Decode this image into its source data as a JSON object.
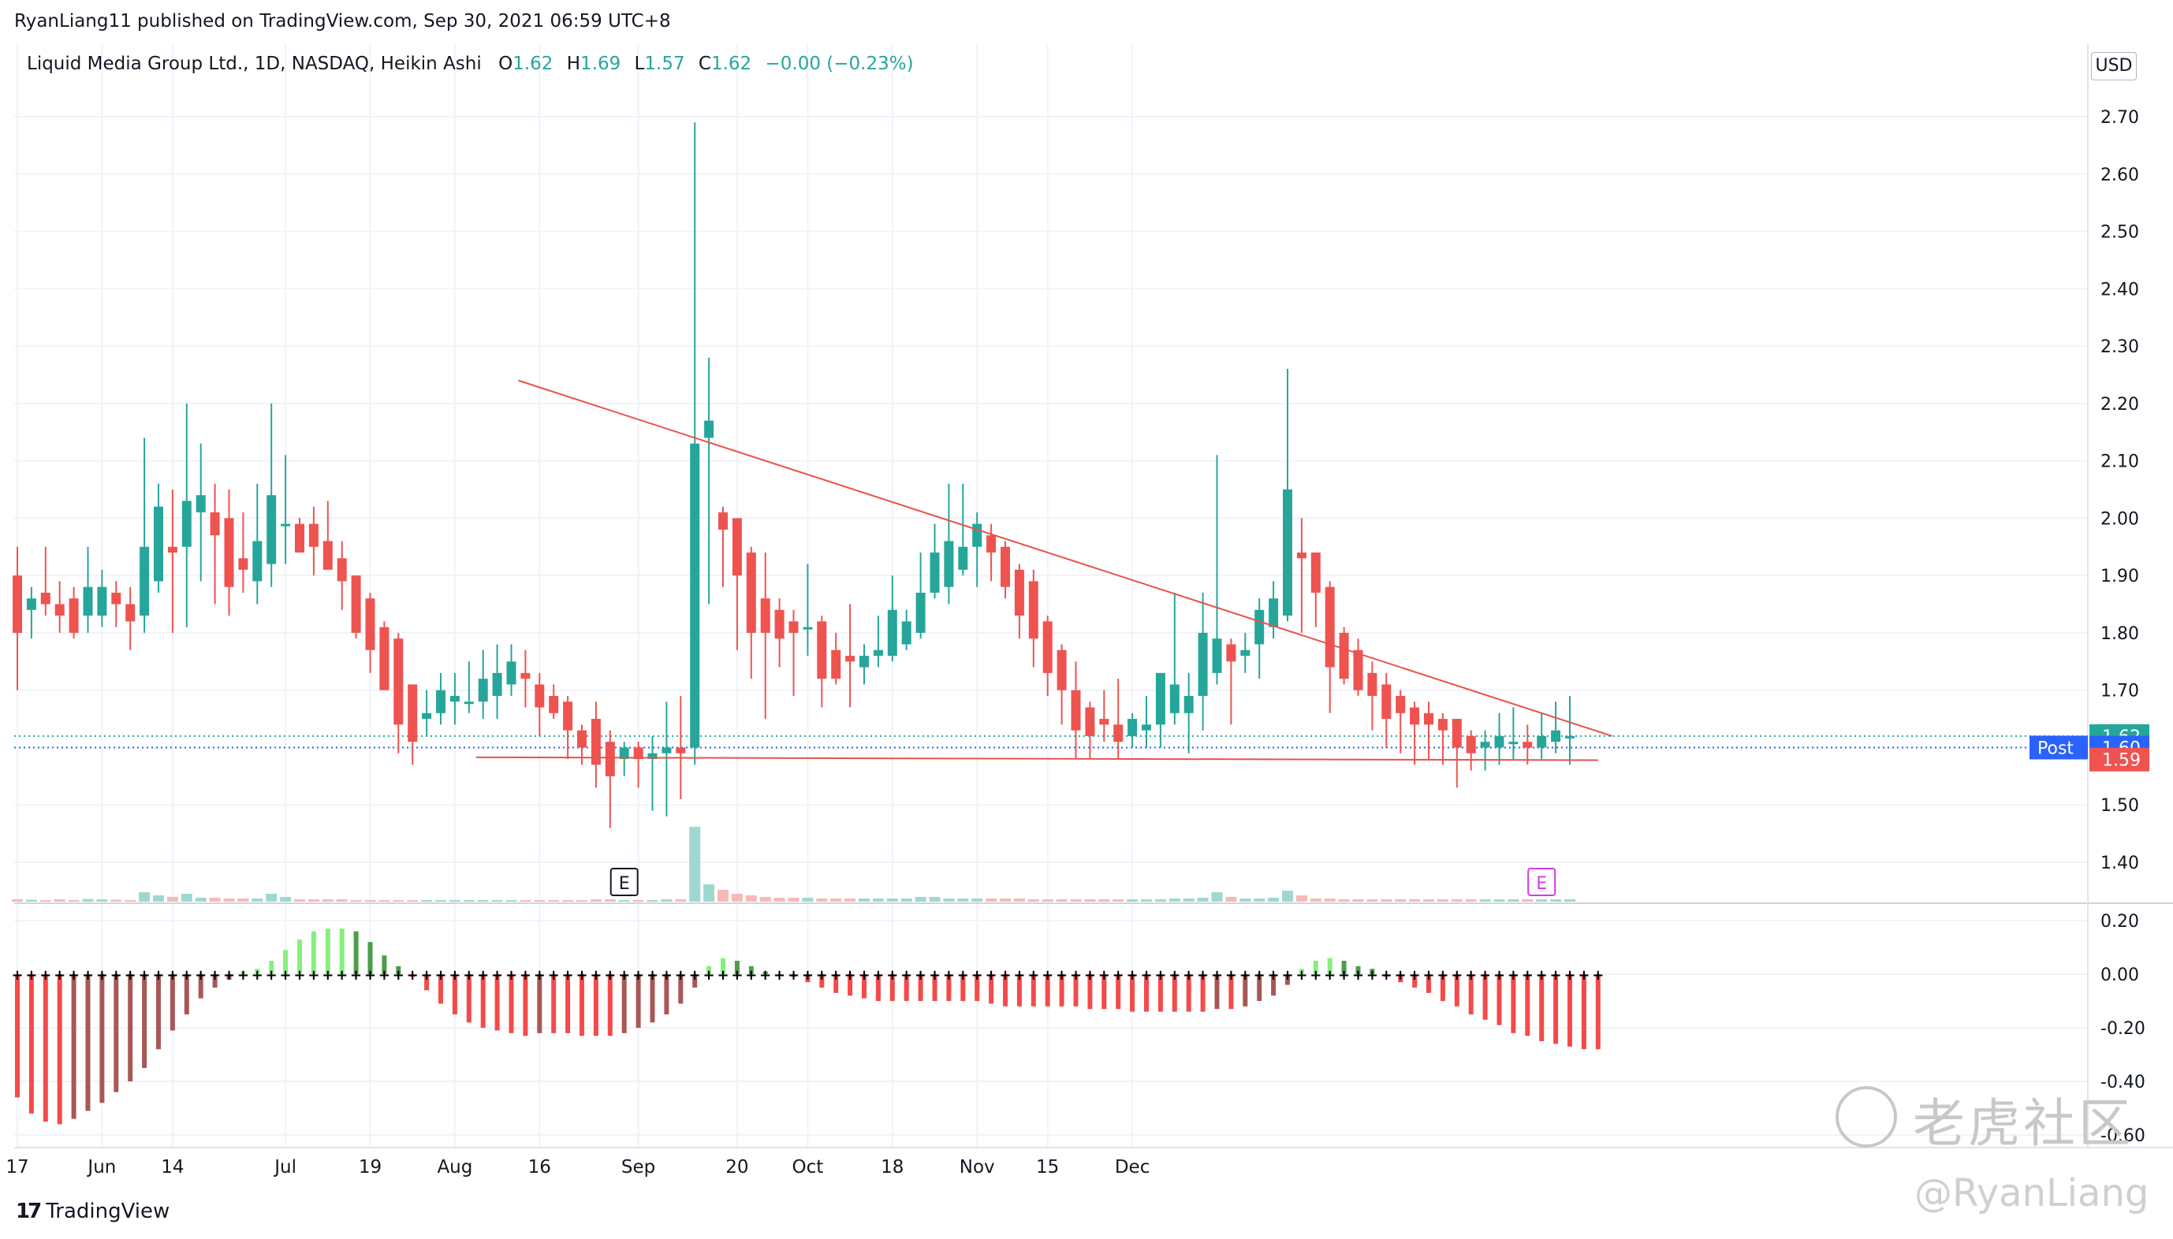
{
  "header": {
    "published": "RyanLiang11 published on TradingView.com, Sep 30, 2021 06:59 UTC+8",
    "symbol": "Liquid Media Group Ltd., 1D, NASDAQ, Heikin Ashi",
    "o_label": "O",
    "o_value": "1.62",
    "h_label": "H",
    "h_value": "1.69",
    "l_label": "L",
    "l_value": "1.57",
    "c_label": "C",
    "c_value": "1.62",
    "change": "−0.00 (−0.23%)"
  },
  "currency": "USD",
  "price_tags": {
    "last": "1.62",
    "post_label": "Post",
    "post": "1.60",
    "low": "1.59"
  },
  "footer": {
    "brand": "TradingView"
  },
  "watermark": {
    "site": "老虎社区",
    "user": "@RyanLiang"
  },
  "colors": {
    "up": "#26a69a",
    "down": "#ef5350",
    "trend": "#e8524a",
    "volume_up": "#9fd8cf",
    "volume_down": "#f5b9b7",
    "osc_light_green": "#86f07c",
    "osc_dark_green": "#4c9d48",
    "osc_light_red": "#f44a4a",
    "osc_dark_red": "#a85757",
    "post_tag": "#2962ff",
    "earnings": "#d33ae6"
  },
  "chart_data": [
    {
      "type": "candlestick",
      "style": "Heikin Ashi",
      "ylim": [
        1.35,
        2.75
      ],
      "y_ticks": [
        "2.70",
        "2.60",
        "2.50",
        "2.40",
        "2.30",
        "2.20",
        "2.10",
        "2.00",
        "1.90",
        "1.80",
        "1.70",
        "1.60",
        "1.50",
        "1.40"
      ],
      "x_ticks": [
        "17",
        "Jun",
        "14",
        "Jul",
        "19",
        "Aug",
        "16",
        "Sep",
        "20",
        "Oct",
        "18",
        "Nov",
        "15",
        "Dec"
      ],
      "candles": [
        {
          "o": 1.9,
          "h": 1.95,
          "l": 1.7,
          "c": 1.8
        },
        {
          "o": 1.84,
          "h": 1.88,
          "l": 1.79,
          "c": 1.86
        },
        {
          "o": 1.87,
          "h": 1.95,
          "l": 1.83,
          "c": 1.85
        },
        {
          "o": 1.85,
          "h": 1.89,
          "l": 1.8,
          "c": 1.83
        },
        {
          "o": 1.86,
          "h": 1.88,
          "l": 1.79,
          "c": 1.8
        },
        {
          "o": 1.83,
          "h": 1.95,
          "l": 1.8,
          "c": 1.88
        },
        {
          "o": 1.83,
          "h": 1.91,
          "l": 1.81,
          "c": 1.88
        },
        {
          "o": 1.87,
          "h": 1.89,
          "l": 1.81,
          "c": 1.85
        },
        {
          "o": 1.85,
          "h": 1.88,
          "l": 1.77,
          "c": 1.82
        },
        {
          "o": 1.83,
          "h": 2.14,
          "l": 1.8,
          "c": 1.95
        },
        {
          "o": 1.89,
          "h": 2.06,
          "l": 1.87,
          "c": 2.02
        },
        {
          "o": 1.95,
          "h": 2.05,
          "l": 1.8,
          "c": 1.94
        },
        {
          "o": 1.95,
          "h": 2.2,
          "l": 1.81,
          "c": 2.03
        },
        {
          "o": 2.01,
          "h": 2.13,
          "l": 1.89,
          "c": 2.04
        },
        {
          "o": 2.01,
          "h": 2.06,
          "l": 1.85,
          "c": 1.97
        },
        {
          "o": 2.0,
          "h": 2.05,
          "l": 1.83,
          "c": 1.88
        },
        {
          "o": 1.93,
          "h": 2.01,
          "l": 1.87,
          "c": 1.91
        },
        {
          "o": 1.89,
          "h": 2.06,
          "l": 1.85,
          "c": 1.96
        },
        {
          "o": 1.92,
          "h": 2.2,
          "l": 1.88,
          "c": 2.04
        },
        {
          "o": 1.99,
          "h": 2.11,
          "l": 1.92,
          "c": 1.99
        },
        {
          "o": 1.99,
          "h": 2.0,
          "l": 1.94,
          "c": 1.94
        },
        {
          "o": 1.99,
          "h": 2.02,
          "l": 1.9,
          "c": 1.95
        },
        {
          "o": 1.96,
          "h": 2.03,
          "l": 1.92,
          "c": 1.91
        },
        {
          "o": 1.93,
          "h": 1.96,
          "l": 1.84,
          "c": 1.89
        },
        {
          "o": 1.9,
          "h": 1.9,
          "l": 1.79,
          "c": 1.8
        },
        {
          "o": 1.86,
          "h": 1.87,
          "l": 1.73,
          "c": 1.77
        },
        {
          "o": 1.81,
          "h": 1.82,
          "l": 1.71,
          "c": 1.7
        },
        {
          "o": 1.79,
          "h": 1.8,
          "l": 1.59,
          "c": 1.64
        },
        {
          "o": 1.71,
          "h": 1.71,
          "l": 1.57,
          "c": 1.61
        },
        {
          "o": 1.65,
          "h": 1.7,
          "l": 1.62,
          "c": 1.66
        },
        {
          "o": 1.66,
          "h": 1.73,
          "l": 1.64,
          "c": 1.7
        },
        {
          "o": 1.68,
          "h": 1.73,
          "l": 1.64,
          "c": 1.69
        },
        {
          "o": 1.68,
          "h": 1.75,
          "l": 1.66,
          "c": 1.68
        },
        {
          "o": 1.68,
          "h": 1.77,
          "l": 1.65,
          "c": 1.72
        },
        {
          "o": 1.69,
          "h": 1.78,
          "l": 1.65,
          "c": 1.73
        },
        {
          "o": 1.71,
          "h": 1.78,
          "l": 1.69,
          "c": 1.75
        },
        {
          "o": 1.73,
          "h": 1.77,
          "l": 1.67,
          "c": 1.72
        },
        {
          "o": 1.71,
          "h": 1.73,
          "l": 1.62,
          "c": 1.67
        },
        {
          "o": 1.69,
          "h": 1.71,
          "l": 1.65,
          "c": 1.66
        },
        {
          "o": 1.68,
          "h": 1.69,
          "l": 1.58,
          "c": 1.63
        },
        {
          "o": 1.63,
          "h": 1.64,
          "l": 1.57,
          "c": 1.6
        },
        {
          "o": 1.65,
          "h": 1.68,
          "l": 1.53,
          "c": 1.57
        },
        {
          "o": 1.61,
          "h": 1.63,
          "l": 1.46,
          "c": 1.55
        },
        {
          "o": 1.58,
          "h": 1.61,
          "l": 1.55,
          "c": 1.6
        },
        {
          "o": 1.6,
          "h": 1.61,
          "l": 1.53,
          "c": 1.58
        },
        {
          "o": 1.58,
          "h": 1.62,
          "l": 1.49,
          "c": 1.59
        },
        {
          "o": 1.59,
          "h": 1.68,
          "l": 1.48,
          "c": 1.6
        },
        {
          "o": 1.6,
          "h": 1.69,
          "l": 1.51,
          "c": 1.59
        },
        {
          "o": 1.6,
          "h": 2.69,
          "l": 1.57,
          "c": 2.13
        },
        {
          "o": 2.14,
          "h": 2.28,
          "l": 1.85,
          "c": 2.17
        },
        {
          "o": 2.01,
          "h": 2.02,
          "l": 1.88,
          "c": 1.98
        },
        {
          "o": 2.0,
          "h": 2.0,
          "l": 1.77,
          "c": 1.9
        },
        {
          "o": 1.94,
          "h": 1.95,
          "l": 1.72,
          "c": 1.8
        },
        {
          "o": 1.86,
          "h": 1.94,
          "l": 1.65,
          "c": 1.8
        },
        {
          "o": 1.84,
          "h": 1.86,
          "l": 1.74,
          "c": 1.79
        },
        {
          "o": 1.82,
          "h": 1.84,
          "l": 1.69,
          "c": 1.8
        },
        {
          "o": 1.81,
          "h": 1.92,
          "l": 1.76,
          "c": 1.81
        },
        {
          "o": 1.82,
          "h": 1.83,
          "l": 1.67,
          "c": 1.72
        },
        {
          "o": 1.77,
          "h": 1.8,
          "l": 1.71,
          "c": 1.72
        },
        {
          "o": 1.76,
          "h": 1.85,
          "l": 1.67,
          "c": 1.75
        },
        {
          "o": 1.74,
          "h": 1.78,
          "l": 1.71,
          "c": 1.76
        },
        {
          "o": 1.76,
          "h": 1.83,
          "l": 1.74,
          "c": 1.77
        },
        {
          "o": 1.76,
          "h": 1.9,
          "l": 1.75,
          "c": 1.84
        },
        {
          "o": 1.78,
          "h": 1.84,
          "l": 1.77,
          "c": 1.82
        },
        {
          "o": 1.8,
          "h": 1.94,
          "l": 1.79,
          "c": 1.87
        },
        {
          "o": 1.87,
          "h": 1.99,
          "l": 1.86,
          "c": 1.94
        },
        {
          "o": 1.88,
          "h": 2.06,
          "l": 1.85,
          "c": 1.96
        },
        {
          "o": 1.91,
          "h": 2.06,
          "l": 1.9,
          "c": 1.95
        },
        {
          "o": 1.95,
          "h": 2.01,
          "l": 1.88,
          "c": 1.99
        },
        {
          "o": 1.97,
          "h": 1.99,
          "l": 1.89,
          "c": 1.94
        },
        {
          "o": 1.95,
          "h": 1.96,
          "l": 1.86,
          "c": 1.88
        },
        {
          "o": 1.91,
          "h": 1.92,
          "l": 1.79,
          "c": 1.83
        },
        {
          "o": 1.89,
          "h": 1.91,
          "l": 1.74,
          "c": 1.79
        },
        {
          "o": 1.82,
          "h": 1.83,
          "l": 1.69,
          "c": 1.73
        },
        {
          "o": 1.77,
          "h": 1.78,
          "l": 1.64,
          "c": 1.7
        },
        {
          "o": 1.7,
          "h": 1.75,
          "l": 1.58,
          "c": 1.63
        },
        {
          "o": 1.67,
          "h": 1.68,
          "l": 1.58,
          "c": 1.62
        },
        {
          "o": 1.65,
          "h": 1.7,
          "l": 1.61,
          "c": 1.64
        },
        {
          "o": 1.64,
          "h": 1.72,
          "l": 1.58,
          "c": 1.61
        },
        {
          "o": 1.62,
          "h": 1.66,
          "l": 1.6,
          "c": 1.65
        },
        {
          "o": 1.63,
          "h": 1.69,
          "l": 1.6,
          "c": 1.64
        },
        {
          "o": 1.64,
          "h": 1.73,
          "l": 1.6,
          "c": 1.73
        },
        {
          "o": 1.66,
          "h": 1.87,
          "l": 1.64,
          "c": 1.71
        },
        {
          "o": 1.66,
          "h": 1.73,
          "l": 1.59,
          "c": 1.69
        },
        {
          "o": 1.69,
          "h": 1.87,
          "l": 1.63,
          "c": 1.8
        },
        {
          "o": 1.73,
          "h": 2.11,
          "l": 1.71,
          "c": 1.79
        },
        {
          "o": 1.78,
          "h": 1.79,
          "l": 1.64,
          "c": 1.75
        },
        {
          "o": 1.76,
          "h": 1.8,
          "l": 1.73,
          "c": 1.77
        },
        {
          "o": 1.78,
          "h": 1.86,
          "l": 1.72,
          "c": 1.84
        },
        {
          "o": 1.81,
          "h": 1.89,
          "l": 1.79,
          "c": 1.86
        },
        {
          "o": 1.83,
          "h": 2.26,
          "l": 1.82,
          "c": 2.05
        },
        {
          "o": 1.94,
          "h": 2.0,
          "l": 1.8,
          "c": 1.93
        },
        {
          "o": 1.94,
          "h": 1.94,
          "l": 1.81,
          "c": 1.87
        },
        {
          "o": 1.88,
          "h": 1.89,
          "l": 1.66,
          "c": 1.74
        },
        {
          "o": 1.8,
          "h": 1.81,
          "l": 1.71,
          "c": 1.72
        },
        {
          "o": 1.77,
          "h": 1.79,
          "l": 1.69,
          "c": 1.7
        },
        {
          "o": 1.73,
          "h": 1.75,
          "l": 1.63,
          "c": 1.69
        },
        {
          "o": 1.71,
          "h": 1.73,
          "l": 1.6,
          "c": 1.65
        },
        {
          "o": 1.69,
          "h": 1.7,
          "l": 1.59,
          "c": 1.66
        },
        {
          "o": 1.67,
          "h": 1.68,
          "l": 1.57,
          "c": 1.64
        },
        {
          "o": 1.66,
          "h": 1.68,
          "l": 1.58,
          "c": 1.64
        },
        {
          "o": 1.65,
          "h": 1.66,
          "l": 1.57,
          "c": 1.63
        },
        {
          "o": 1.65,
          "h": 1.65,
          "l": 1.53,
          "c": 1.6
        },
        {
          "o": 1.62,
          "h": 1.63,
          "l": 1.56,
          "c": 1.59
        },
        {
          "o": 1.6,
          "h": 1.63,
          "l": 1.56,
          "c": 1.61
        },
        {
          "o": 1.6,
          "h": 1.66,
          "l": 1.57,
          "c": 1.62
        },
        {
          "o": 1.61,
          "h": 1.67,
          "l": 1.58,
          "c": 1.61
        },
        {
          "o": 1.61,
          "h": 1.64,
          "l": 1.57,
          "c": 1.6
        },
        {
          "o": 1.6,
          "h": 1.66,
          "l": 1.58,
          "c": 1.62
        },
        {
          "o": 1.61,
          "h": 1.68,
          "l": 1.59,
          "c": 1.63
        },
        {
          "o": 1.62,
          "h": 1.69,
          "l": 1.57,
          "c": 1.62
        }
      ],
      "volume": [
        0.3,
        0.25,
        0.2,
        0.3,
        0.2,
        0.35,
        0.3,
        0.25,
        0.2,
        1.2,
        0.8,
        0.6,
        1.0,
        0.5,
        0.5,
        0.4,
        0.4,
        0.4,
        1.0,
        0.6,
        0.3,
        0.3,
        0.3,
        0.3,
        0.2,
        0.2,
        0.2,
        0.2,
        0.2,
        0.2,
        0.2,
        0.2,
        0.2,
        0.2,
        0.2,
        0.2,
        0.2,
        0.2,
        0.2,
        0.2,
        0.2,
        0.3,
        0.3,
        0.2,
        0.2,
        0.2,
        0.3,
        0.3,
        9.5,
        2.2,
        1.5,
        1.0,
        0.8,
        0.6,
        0.5,
        0.5,
        0.5,
        0.4,
        0.4,
        0.4,
        0.4,
        0.4,
        0.4,
        0.4,
        0.6,
        0.6,
        0.4,
        0.4,
        0.4,
        0.4,
        0.4,
        0.4,
        0.3,
        0.3,
        0.3,
        0.3,
        0.3,
        0.3,
        0.3,
        0.3,
        0.3,
        0.3,
        0.4,
        0.4,
        0.5,
        1.2,
        0.6,
        0.4,
        0.4,
        0.5,
        1.4,
        0.8,
        0.4,
        0.4,
        0.3,
        0.3,
        0.3,
        0.3,
        0.3,
        0.3,
        0.3,
        0.3,
        0.3,
        0.3,
        0.3,
        0.3,
        0.3,
        0.3,
        0.3,
        0.3,
        0.3
      ],
      "trendline_upper": {
        "start": {
          "x_index": 35.5,
          "y": 2.24
        },
        "end": {
          "x_index": 113.0,
          "y": 1.62
        }
      },
      "trendline_lower": {
        "start": {
          "x_index": 32.5,
          "y": 1.583
        },
        "end": {
          "x_index": 112.0,
          "y": 1.578
        }
      },
      "earnings_markers": [
        {
          "x_index": 43,
          "label": "E",
          "style": "past"
        },
        {
          "x_index": 108,
          "label": "E",
          "style": "future"
        }
      ]
    },
    {
      "type": "bar",
      "name_label": "",
      "ylim": [
        -0.62,
        0.24
      ],
      "y_ticks": [
        "0.20",
        "0.00",
        "-0.20",
        "-0.40",
        "-0.60"
      ],
      "values": [
        -0.46,
        -0.52,
        -0.55,
        -0.56,
        -0.54,
        -0.51,
        -0.48,
        -0.44,
        -0.4,
        -0.35,
        -0.28,
        -0.21,
        -0.15,
        -0.09,
        -0.05,
        -0.02,
        0.01,
        0.02,
        0.05,
        0.09,
        0.13,
        0.16,
        0.17,
        0.17,
        0.16,
        0.12,
        0.07,
        0.03,
        -0.01,
        -0.06,
        -0.11,
        -0.15,
        -0.18,
        -0.2,
        -0.21,
        -0.22,
        -0.23,
        -0.22,
        -0.22,
        -0.22,
        -0.23,
        -0.23,
        -0.23,
        -0.22,
        -0.2,
        -0.18,
        -0.15,
        -0.11,
        -0.05,
        0.03,
        0.06,
        0.05,
        0.03,
        0.01,
        0.0,
        -0.01,
        -0.03,
        -0.05,
        -0.07,
        -0.08,
        -0.09,
        -0.1,
        -0.1,
        -0.1,
        -0.1,
        -0.1,
        -0.1,
        -0.1,
        -0.1,
        -0.11,
        -0.12,
        -0.12,
        -0.12,
        -0.12,
        -0.12,
        -0.12,
        -0.13,
        -0.13,
        -0.13,
        -0.14,
        -0.14,
        -0.14,
        -0.14,
        -0.14,
        -0.14,
        -0.13,
        -0.13,
        -0.12,
        -0.1,
        -0.08,
        -0.04,
        0.02,
        0.05,
        0.06,
        0.05,
        0.03,
        0.02,
        -0.01,
        -0.03,
        -0.05,
        -0.07,
        -0.1,
        -0.12,
        -0.15,
        -0.17,
        -0.19,
        -0.22,
        -0.23,
        -0.25,
        -0.26,
        -0.27,
        -0.28,
        -0.28
      ]
    }
  ]
}
